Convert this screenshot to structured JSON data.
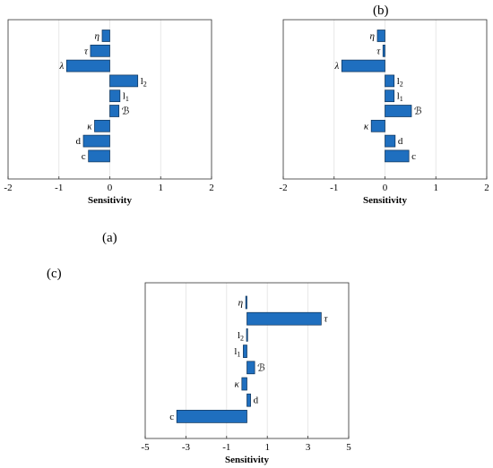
{
  "panel_labels": [
    "(a)",
    "(b)",
    "(c)"
  ],
  "chart_data": [
    {
      "id": "a",
      "type": "bar",
      "orientation": "horizontal",
      "xlabel": "Sensitivity",
      "xlim": [
        -2,
        2
      ],
      "xticks": [
        -2,
        -1,
        0,
        1,
        2
      ],
      "xtick_labels": [
        "-2",
        "-1",
        "0",
        "1",
        "2"
      ],
      "grid_x": true,
      "bar_color": "#1f6fbf",
      "categories": [
        "η",
        "τ",
        "λ",
        "l2",
        "l1",
        "ℬ",
        "κ",
        "d",
        "c"
      ],
      "label_side": [
        "left",
        "left",
        "left",
        "right",
        "right",
        "right",
        "left",
        "left",
        "left"
      ],
      "values": [
        -0.15,
        -0.38,
        -0.85,
        0.55,
        0.2,
        0.18,
        -0.3,
        -0.52,
        -0.42
      ]
    },
    {
      "id": "b",
      "type": "bar",
      "orientation": "horizontal",
      "xlabel": "Sensitivity",
      "xlim": [
        -2,
        2
      ],
      "xticks": [
        -2,
        -1,
        0,
        1,
        2
      ],
      "xtick_labels": [
        "-2",
        "-1",
        "0",
        "1",
        "2"
      ],
      "grid_x": true,
      "bar_color": "#1f6fbf",
      "categories": [
        "η",
        "τ",
        "λ",
        "l2",
        "l1",
        "ℬ",
        "κ",
        "d",
        "c"
      ],
      "label_side": [
        "left",
        "left",
        "left",
        "right",
        "right",
        "right",
        "left",
        "right",
        "right"
      ],
      "values": [
        -0.15,
        -0.04,
        -0.85,
        0.18,
        0.18,
        0.52,
        -0.27,
        0.2,
        0.47
      ]
    },
    {
      "id": "c",
      "type": "bar",
      "orientation": "horizontal",
      "xlabel": "Sensitivity",
      "xlim": [
        -5,
        5
      ],
      "xticks": [
        -5,
        -3,
        -1,
        1,
        3,
        5
      ],
      "xtick_labels": [
        "-5",
        "-3",
        "-1",
        "1",
        "3",
        "5"
      ],
      "grid_x": true,
      "bar_color": "#1f6fbf",
      "categories": [
        "η",
        "τ",
        "l2",
        "l1",
        "ℬ",
        "κ",
        "d",
        "c"
      ],
      "label_side": [
        "left",
        "right",
        "left",
        "left",
        "right",
        "left",
        "right",
        "left"
      ],
      "values": [
        -0.06,
        3.65,
        -0.02,
        -0.18,
        0.38,
        -0.25,
        0.18,
        -3.45
      ]
    }
  ]
}
